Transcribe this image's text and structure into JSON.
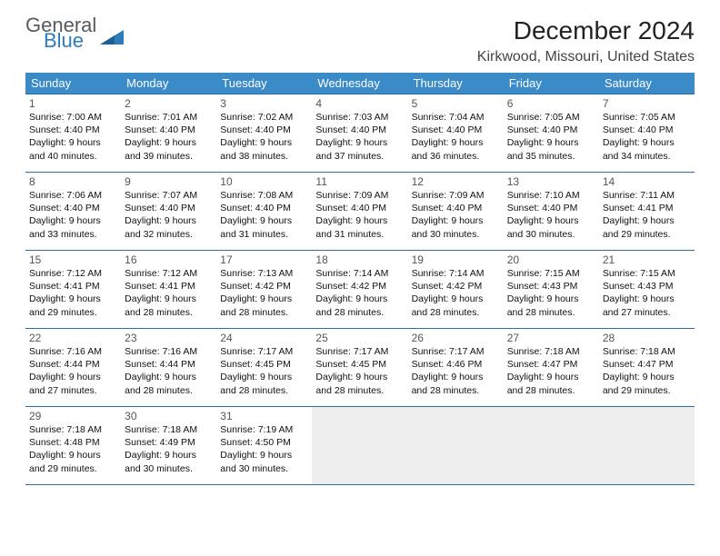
{
  "logo": {
    "general": "General",
    "blue": "Blue"
  },
  "title": "December 2024",
  "location": "Kirkwood, Missouri, United States",
  "colors": {
    "header_bg": "#3b8bc9",
    "header_fg": "#ffffff",
    "cell_border": "#2f6fa0",
    "empty_bg": "#eeeeee",
    "logo_gray": "#555a5f",
    "logo_blue": "#2b7bbd"
  },
  "weekdays": [
    "Sunday",
    "Monday",
    "Tuesday",
    "Wednesday",
    "Thursday",
    "Friday",
    "Saturday"
  ],
  "days": [
    {
      "n": "1",
      "sr": "7:00 AM",
      "ss": "4:40 PM",
      "dl": "9 hours and 40 minutes."
    },
    {
      "n": "2",
      "sr": "7:01 AM",
      "ss": "4:40 PM",
      "dl": "9 hours and 39 minutes."
    },
    {
      "n": "3",
      "sr": "7:02 AM",
      "ss": "4:40 PM",
      "dl": "9 hours and 38 minutes."
    },
    {
      "n": "4",
      "sr": "7:03 AM",
      "ss": "4:40 PM",
      "dl": "9 hours and 37 minutes."
    },
    {
      "n": "5",
      "sr": "7:04 AM",
      "ss": "4:40 PM",
      "dl": "9 hours and 36 minutes."
    },
    {
      "n": "6",
      "sr": "7:05 AM",
      "ss": "4:40 PM",
      "dl": "9 hours and 35 minutes."
    },
    {
      "n": "7",
      "sr": "7:05 AM",
      "ss": "4:40 PM",
      "dl": "9 hours and 34 minutes."
    },
    {
      "n": "8",
      "sr": "7:06 AM",
      "ss": "4:40 PM",
      "dl": "9 hours and 33 minutes."
    },
    {
      "n": "9",
      "sr": "7:07 AM",
      "ss": "4:40 PM",
      "dl": "9 hours and 32 minutes."
    },
    {
      "n": "10",
      "sr": "7:08 AM",
      "ss": "4:40 PM",
      "dl": "9 hours and 31 minutes."
    },
    {
      "n": "11",
      "sr": "7:09 AM",
      "ss": "4:40 PM",
      "dl": "9 hours and 31 minutes."
    },
    {
      "n": "12",
      "sr": "7:09 AM",
      "ss": "4:40 PM",
      "dl": "9 hours and 30 minutes."
    },
    {
      "n": "13",
      "sr": "7:10 AM",
      "ss": "4:40 PM",
      "dl": "9 hours and 30 minutes."
    },
    {
      "n": "14",
      "sr": "7:11 AM",
      "ss": "4:41 PM",
      "dl": "9 hours and 29 minutes."
    },
    {
      "n": "15",
      "sr": "7:12 AM",
      "ss": "4:41 PM",
      "dl": "9 hours and 29 minutes."
    },
    {
      "n": "16",
      "sr": "7:12 AM",
      "ss": "4:41 PM",
      "dl": "9 hours and 28 minutes."
    },
    {
      "n": "17",
      "sr": "7:13 AM",
      "ss": "4:42 PM",
      "dl": "9 hours and 28 minutes."
    },
    {
      "n": "18",
      "sr": "7:14 AM",
      "ss": "4:42 PM",
      "dl": "9 hours and 28 minutes."
    },
    {
      "n": "19",
      "sr": "7:14 AM",
      "ss": "4:42 PM",
      "dl": "9 hours and 28 minutes."
    },
    {
      "n": "20",
      "sr": "7:15 AM",
      "ss": "4:43 PM",
      "dl": "9 hours and 28 minutes."
    },
    {
      "n": "21",
      "sr": "7:15 AM",
      "ss": "4:43 PM",
      "dl": "9 hours and 27 minutes."
    },
    {
      "n": "22",
      "sr": "7:16 AM",
      "ss": "4:44 PM",
      "dl": "9 hours and 27 minutes."
    },
    {
      "n": "23",
      "sr": "7:16 AM",
      "ss": "4:44 PM",
      "dl": "9 hours and 28 minutes."
    },
    {
      "n": "24",
      "sr": "7:17 AM",
      "ss": "4:45 PM",
      "dl": "9 hours and 28 minutes."
    },
    {
      "n": "25",
      "sr": "7:17 AM",
      "ss": "4:45 PM",
      "dl": "9 hours and 28 minutes."
    },
    {
      "n": "26",
      "sr": "7:17 AM",
      "ss": "4:46 PM",
      "dl": "9 hours and 28 minutes."
    },
    {
      "n": "27",
      "sr": "7:18 AM",
      "ss": "4:47 PM",
      "dl": "9 hours and 28 minutes."
    },
    {
      "n": "28",
      "sr": "7:18 AM",
      "ss": "4:47 PM",
      "dl": "9 hours and 29 minutes."
    },
    {
      "n": "29",
      "sr": "7:18 AM",
      "ss": "4:48 PM",
      "dl": "9 hours and 29 minutes."
    },
    {
      "n": "30",
      "sr": "7:18 AM",
      "ss": "4:49 PM",
      "dl": "9 hours and 30 minutes."
    },
    {
      "n": "31",
      "sr": "7:19 AM",
      "ss": "4:50 PM",
      "dl": "9 hours and 30 minutes."
    }
  ],
  "labels": {
    "sunrise": "Sunrise:",
    "sunset": "Sunset:",
    "daylight": "Daylight:"
  },
  "layout": {
    "first_weekday_index": 0,
    "trailing_empty": 4
  }
}
